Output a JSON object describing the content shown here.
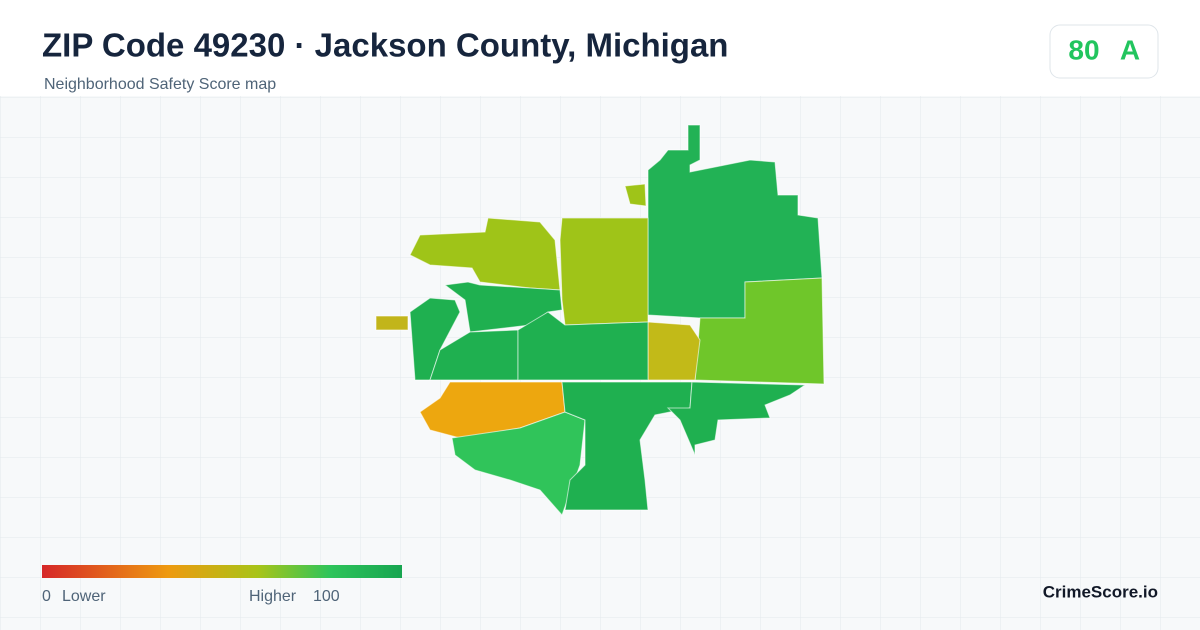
{
  "header": {
    "title": "ZIP Code 49230 · Jackson County, Michigan",
    "subtitle": "Neighborhood Safety Score map"
  },
  "score": {
    "value": "80",
    "grade": "A"
  },
  "legend": {
    "min": "0",
    "min_label": "Lower",
    "max_label": "Higher",
    "max": "100"
  },
  "brand": "CrimeScore.io"
}
